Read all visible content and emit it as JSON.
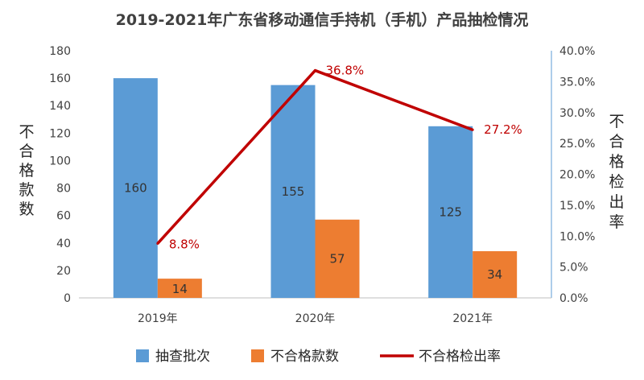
{
  "chart_data": {
    "type": "bar",
    "title": "2019-2021年广东省移动通信手持机（手机）产品抽检情况",
    "categories": [
      "2019年",
      "2020年",
      "2021年"
    ],
    "series": [
      {
        "name": "抽查批次",
        "kind": "bar",
        "axis": "left",
        "values": [
          160,
          155,
          125
        ],
        "labels": [
          "160",
          "155",
          "125"
        ]
      },
      {
        "name": "不合格款数",
        "kind": "bar",
        "axis": "left",
        "values": [
          14,
          57,
          34
        ],
        "labels": [
          "14",
          "57",
          "34"
        ]
      },
      {
        "name": "不合格检出率",
        "kind": "line",
        "axis": "right",
        "values": [
          0.088,
          0.368,
          0.272
        ],
        "labels": [
          "8.8%",
          "36.8%",
          "27.2%"
        ]
      }
    ],
    "y_left": {
      "label": "不合格款数",
      "ylim": [
        0,
        180
      ],
      "ticks": [
        "0",
        "20",
        "40",
        "60",
        "80",
        "100",
        "120",
        "140",
        "160",
        "180"
      ]
    },
    "y_right": {
      "label": "不合格检出率",
      "ylim": [
        0,
        0.4
      ],
      "ticks": [
        "0.0%",
        "5.0%",
        "10.0%",
        "15.0%",
        "20.0%",
        "25.0%",
        "30.0%",
        "35.0%",
        "40.0%"
      ]
    },
    "grid": false,
    "legend": "bottom",
    "colors": {
      "bar1": "#5b9bd5",
      "bar2": "#ed7d31",
      "line": "#c00000"
    }
  }
}
